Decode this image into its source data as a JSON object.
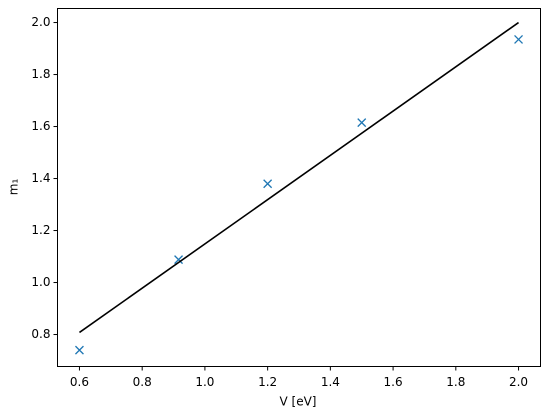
{
  "chart_data": {
    "type": "scatter",
    "xlabel": "V [eV]",
    "ylabel": "m₁",
    "xlim": [
      0.53,
      2.07
    ],
    "ylim": [
      0.677,
      2.054
    ],
    "xticks": [
      0.6,
      0.8,
      {
        "value": 1,
        "label": "1.0"
      },
      1.2,
      1.4,
      1.6,
      1.8,
      {
        "value": 2,
        "label": "2.0"
      }
    ],
    "yticks": [
      0.8,
      {
        "value": 1,
        "label": "1.0"
      },
      1.2,
      1.4,
      1.6,
      1.8,
      {
        "value": 2,
        "label": "2.0"
      }
    ],
    "series": [
      {
        "type": "scatter",
        "marker": "x",
        "color": "#1f77b4",
        "x": [
          0.6,
          0.916,
          1.2,
          1.5,
          2.0
        ],
        "values": [
          0.74,
          1.088,
          1.38,
          1.615,
          1.935
        ]
      },
      {
        "type": "line",
        "color": "#000000",
        "x": [
          0.6,
          2.0
        ],
        "values": [
          0.808,
          2.0
        ]
      }
    ]
  }
}
